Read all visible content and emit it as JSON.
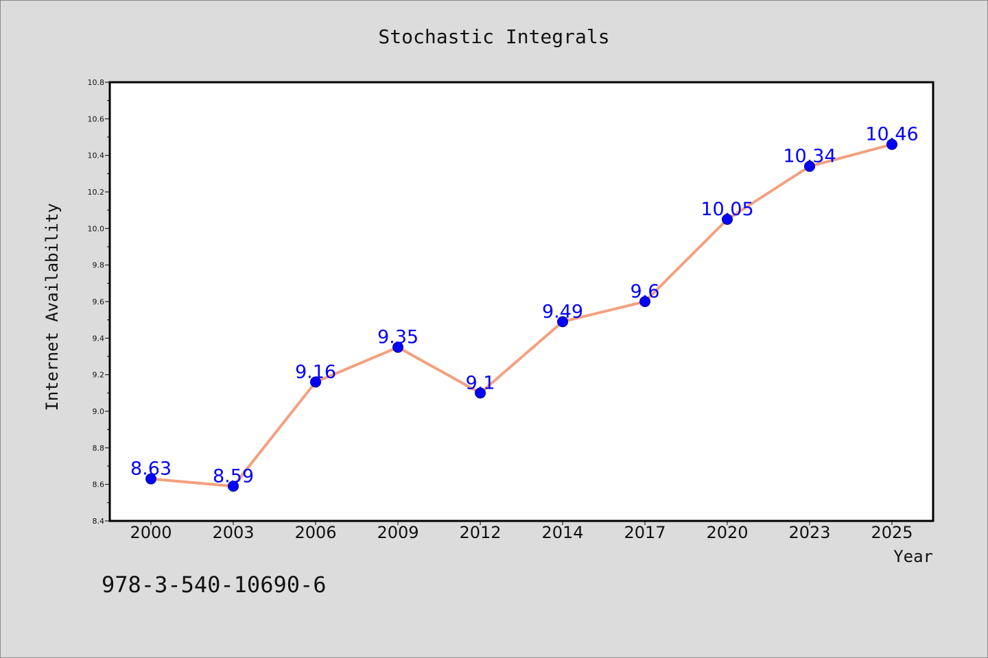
{
  "chart_data": {
    "type": "line",
    "title": "Stochastic Integrals",
    "xlabel": "Year",
    "ylabel": "Internet Availability",
    "categories": [
      "2000",
      "2003",
      "2006",
      "2009",
      "2012",
      "2014",
      "2017",
      "2020",
      "2023",
      "2025"
    ],
    "series": [
      {
        "values": [
          8.63,
          8.59,
          9.16,
          9.35,
          9.1,
          9.49,
          9.6,
          10.05,
          10.34,
          10.46
        ],
        "data_labels": [
          "8.63",
          "8.59",
          "9.16",
          "9.35",
          "9.1",
          "9.49",
          "9.6",
          "10.05",
          "10.34",
          "10.46"
        ]
      }
    ],
    "ylim": [
      8.4,
      10.8
    ],
    "yticks": [
      "8.4",
      "8.6",
      "8.8",
      "9.0",
      "9.2",
      "9.4",
      "9.6",
      "9.8",
      "10.0",
      "10.2",
      "10.4",
      "10.6",
      "10.8"
    ],
    "grid": false,
    "legend": "none",
    "colors": {
      "line": "#f4a07f",
      "marker": "#0000ff",
      "marker_edge": "#000080",
      "data_label": "#0000ff",
      "background": "#dcdcdc",
      "plot_area": "#ffffff"
    }
  },
  "footer": {
    "isbn": "978-3-540-10690-6"
  }
}
